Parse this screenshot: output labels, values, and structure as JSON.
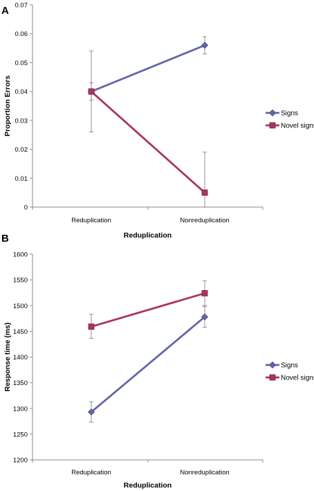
{
  "chart_data": [
    {
      "type": "line",
      "panel_label": "A",
      "categories": [
        "Reduplication",
        "Nonreduplication"
      ],
      "xlabel": "Reduplication",
      "ylabel": "Proportion Errors",
      "ylim": [
        0,
        0.07
      ],
      "yticks": [
        0,
        0.01,
        0.02,
        0.03,
        0.04,
        0.05,
        0.06,
        0.07
      ],
      "ytick_labels": [
        "0",
        "0.01",
        "0.02",
        "0.03",
        "0.04",
        "0.05",
        "0.06",
        "0.07"
      ],
      "legend_position": "right",
      "grid": false,
      "series": [
        {
          "name": "Signs",
          "color": "#6266a8",
          "marker": "diamond",
          "values": [
            0.04,
            0.056
          ],
          "err_low": [
            0.037,
            0.053
          ],
          "err_high": [
            0.043,
            0.059
          ]
        },
        {
          "name": "Novel signs",
          "color": "#a93560",
          "marker": "square",
          "values": [
            0.04,
            0.005
          ],
          "err_low": [
            0.026,
            0.0
          ],
          "err_high": [
            0.054,
            0.019
          ]
        }
      ]
    },
    {
      "type": "line",
      "panel_label": "B",
      "categories": [
        "Reduplication",
        "Nonreduplication"
      ],
      "xlabel": "Reduplication",
      "ylabel": "Response time (ms)",
      "ylim": [
        1200,
        1600
      ],
      "yticks": [
        1200,
        1250,
        1300,
        1350,
        1400,
        1450,
        1500,
        1550,
        1600
      ],
      "ytick_labels": [
        "1200",
        "1250",
        "1300",
        "1350",
        "1400",
        "1450",
        "1500",
        "1550",
        "1600"
      ],
      "legend_position": "right",
      "grid": false,
      "series": [
        {
          "name": "Signs",
          "color": "#6266a8",
          "marker": "diamond",
          "values": [
            1293,
            1478
          ],
          "err_low": [
            1273,
            1458
          ],
          "err_high": [
            1313,
            1498
          ]
        },
        {
          "name": "Novel signs",
          "color": "#a93560",
          "marker": "square",
          "values": [
            1459,
            1524
          ],
          "err_low": [
            1436,
            1500
          ],
          "err_high": [
            1483,
            1548
          ]
        }
      ]
    }
  ]
}
